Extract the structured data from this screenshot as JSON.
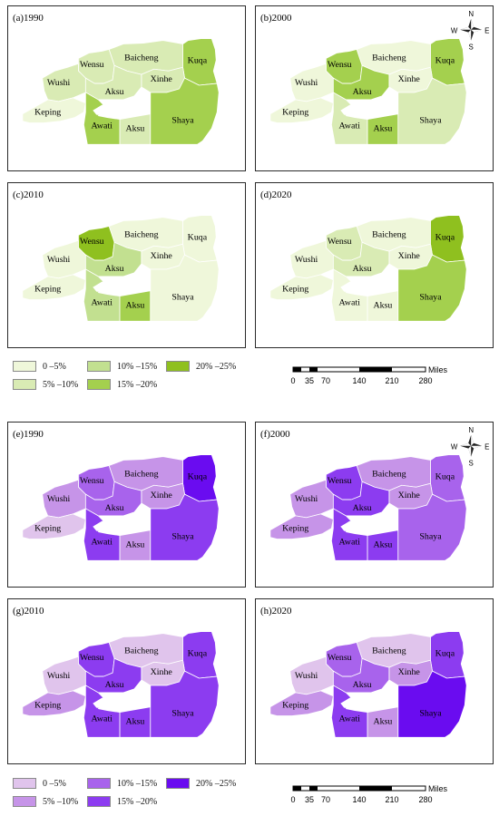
{
  "panels": [
    {
      "label": "(a)1990",
      "scheme": "green",
      "compass": false,
      "fills": {
        "Keping": 1,
        "Wushi": 2,
        "Wensu": 2,
        "Baicheng": 2,
        "Xinhe": 2,
        "Aksu": 2,
        "Awati": 4,
        "AksuS": 2,
        "Shaya": 4,
        "Kuqa": 4
      }
    },
    {
      "label": "(b)2000",
      "scheme": "green",
      "compass": true,
      "fills": {
        "Keping": 1,
        "Wushi": 1,
        "Wensu": 4,
        "Baicheng": 1,
        "Xinhe": 1,
        "Aksu": 4,
        "Awati": 2,
        "AksuS": 4,
        "Shaya": 2,
        "Kuqa": 4
      }
    },
    {
      "label": "(c)2010",
      "scheme": "green",
      "compass": false,
      "fills": {
        "Keping": 1,
        "Wushi": 1,
        "Wensu": 5,
        "Baicheng": 1,
        "Xinhe": 1,
        "Aksu": 3,
        "Awati": 3,
        "AksuS": 4,
        "Shaya": 1,
        "Kuqa": 1
      }
    },
    {
      "label": "(d)2020",
      "scheme": "green",
      "compass": false,
      "fills": {
        "Keping": 1,
        "Wushi": 1,
        "Wensu": 2,
        "Baicheng": 1,
        "Xinhe": 1,
        "Aksu": 2,
        "Awati": 1,
        "AksuS": 1,
        "Shaya": 4,
        "Kuqa": 5
      }
    },
    {
      "label": "(e)1990",
      "scheme": "purple",
      "compass": false,
      "fills": {
        "Keping": 1,
        "Wushi": 2,
        "Wensu": 3,
        "Baicheng": 2,
        "Xinhe": 2,
        "Aksu": 3,
        "Awati": 4,
        "AksuS": 2,
        "Shaya": 4,
        "Kuqa": 5
      }
    },
    {
      "label": "(f)2000",
      "scheme": "purple",
      "compass": true,
      "fills": {
        "Keping": 2,
        "Wushi": 2,
        "Wensu": 4,
        "Baicheng": 2,
        "Xinhe": 2,
        "Aksu": 4,
        "Awati": 4,
        "AksuS": 4,
        "Shaya": 3,
        "Kuqa": 3
      }
    },
    {
      "label": "(g)2010",
      "scheme": "purple",
      "compass": false,
      "fills": {
        "Keping": 2,
        "Wushi": 1,
        "Wensu": 4,
        "Baicheng": 1,
        "Xinhe": 1,
        "Aksu": 4,
        "Awati": 4,
        "AksuS": 4,
        "Shaya": 4,
        "Kuqa": 4
      }
    },
    {
      "label": "(h)2020",
      "scheme": "purple",
      "compass": false,
      "fills": {
        "Keping": 2,
        "Wushi": 1,
        "Wensu": 3,
        "Baicheng": 1,
        "Xinhe": 2,
        "Aksu": 3,
        "Awati": 4,
        "AksuS": 2,
        "Shaya": 5,
        "Kuqa": 4
      }
    }
  ],
  "region_labels": {
    "Baicheng": "Baicheng",
    "Wensu": "Wensu",
    "Kuqa": "Kuqa",
    "Wushi": "Wushi",
    "Xinhe": "Xinhe",
    "Aksu": "Aksu",
    "Keping": "Keping",
    "Awati": "Awati",
    "AksuS": "Aksu",
    "Shaya": "Shaya"
  },
  "compass": {
    "n": "N",
    "s": "S",
    "e": "E",
    "w": "W"
  },
  "schemes": {
    "green": [
      "#eff7da",
      "#d9ebb4",
      "#c2e090",
      "#a4d04e",
      "#8fc01f"
    ],
    "purple": [
      "#e0c4ec",
      "#c694e8",
      "#a863ec",
      "#8c3cf0",
      "#6a0cf0"
    ]
  },
  "legend_green": {
    "items": [
      {
        "label": "0 –5%",
        "level": 1
      },
      {
        "label": "5% –10%",
        "level": 2
      },
      {
        "label": "10% –15%",
        "level": 3
      },
      {
        "label": "15% –20%",
        "level": 4
      },
      {
        "label": "20% –25%",
        "level": 5
      }
    ]
  },
  "legend_purple": {
    "items": [
      {
        "label": "0 –5%",
        "level": 1
      },
      {
        "label": "5% –10%",
        "level": 2
      },
      {
        "label": "10% –15%",
        "level": 3
      },
      {
        "label": "15% –20%",
        "level": 4
      },
      {
        "label": "20% –25%",
        "level": 5
      }
    ]
  },
  "scale_bar": {
    "unit": "Miles",
    "ticks": [
      "0",
      "35",
      "70",
      "140",
      "210",
      "280"
    ]
  },
  "border_color": "#ffffff",
  "lake_color": "#ffffff"
}
